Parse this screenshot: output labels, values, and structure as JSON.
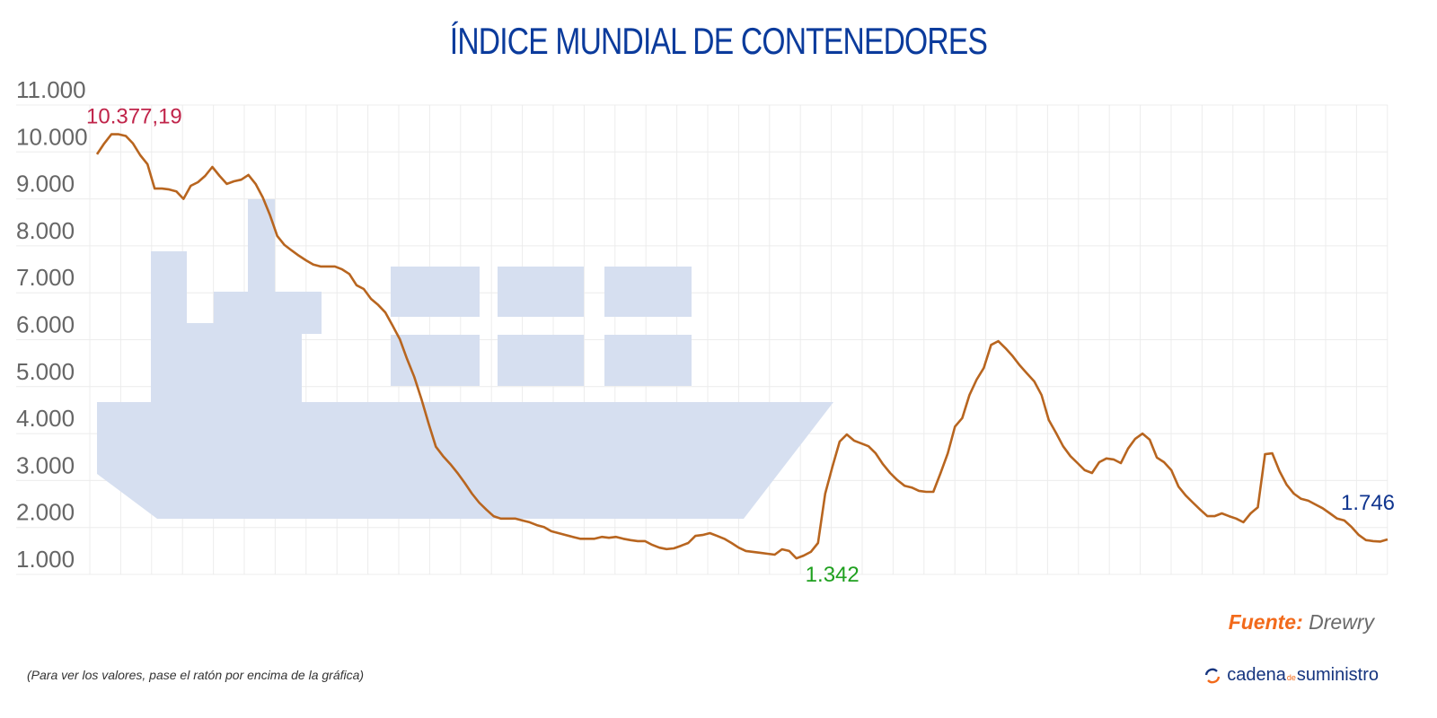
{
  "chart_data": {
    "type": "line",
    "title": "ÍNDICE MUNDIAL DE CONTENEDORES",
    "xlabel": "",
    "ylabel": "",
    "ylim": [
      1000,
      11000
    ],
    "yticks": [
      1000,
      2000,
      3000,
      4000,
      5000,
      6000,
      7000,
      8000,
      9000,
      10000,
      11000
    ],
    "ytick_labels": [
      "1.000",
      "2.000",
      "3.000",
      "4.000",
      "5.000",
      "6.000",
      "7.000",
      "8.000",
      "9.000",
      "10.000",
      "11.000"
    ],
    "grid": true,
    "line_color": "#b8651f",
    "values": [
      9950,
      10180,
      10377,
      10377,
      10340,
      10180,
      9930,
      9740,
      9220,
      9220,
      9200,
      9160,
      9000,
      9280,
      9355,
      9490,
      9680,
      9490,
      9320,
      9375,
      9410,
      9510,
      9320,
      9030,
      8650,
      8210,
      8020,
      7900,
      7790,
      7690,
      7600,
      7560,
      7560,
      7560,
      7500,
      7400,
      7160,
      7080,
      6870,
      6740,
      6580,
      6300,
      6010,
      5590,
      5210,
      4730,
      4210,
      3720,
      3520,
      3350,
      3160,
      2950,
      2720,
      2530,
      2380,
      2240,
      2190,
      2190,
      2190,
      2150,
      2110,
      2050,
      2010,
      1920,
      1880,
      1840,
      1800,
      1760,
      1760,
      1760,
      1800,
      1780,
      1800,
      1760,
      1730,
      1710,
      1710,
      1630,
      1570,
      1540,
      1555,
      1610,
      1670,
      1820,
      1840,
      1880,
      1820,
      1760,
      1670,
      1570,
      1500,
      1480,
      1460,
      1440,
      1420,
      1535,
      1500,
      1342,
      1400,
      1480,
      1670,
      2720,
      3290,
      3830,
      3980,
      3850,
      3790,
      3730,
      3580,
      3350,
      3160,
      3010,
      2890,
      2850,
      2780,
      2760,
      2760,
      3160,
      3580,
      4150,
      4330,
      4820,
      5150,
      5400,
      5890,
      5970,
      5820,
      5650,
      5450,
      5280,
      5110,
      4820,
      4290,
      4020,
      3730,
      3520,
      3370,
      3220,
      3160,
      3390,
      3470,
      3450,
      3370,
      3680,
      3890,
      4000,
      3870,
      3490,
      3390,
      3220,
      2870,
      2680,
      2530,
      2380,
      2240,
      2240,
      2300,
      2240,
      2190,
      2110,
      2300,
      2430,
      3560,
      3580,
      3200,
      2910,
      2720,
      2610,
      2570,
      2490,
      2410,
      2300,
      2190,
      2150,
      2010,
      1840,
      1730,
      1710,
      1700,
      1746
    ],
    "annotations": [
      {
        "label": "10.377,19",
        "index": 2,
        "color": "#c0244a"
      },
      {
        "label": "1.342",
        "index": 97,
        "color": "#1fa01f"
      },
      {
        "label": "1.746",
        "index": 179,
        "color": "#10358f"
      }
    ]
  },
  "source": {
    "key": "Fuente:",
    "value": "Drewry"
  },
  "hint": "(Para ver los valores, pase el ratón por encima de la gráfica)",
  "brand": {
    "part1": "cadena",
    "part2": "de",
    "part3": "suministro",
    "icon": "refresh-arrows-icon"
  },
  "illustration": {
    "icon": "container-ship-icon",
    "color": "#d6dff0"
  }
}
